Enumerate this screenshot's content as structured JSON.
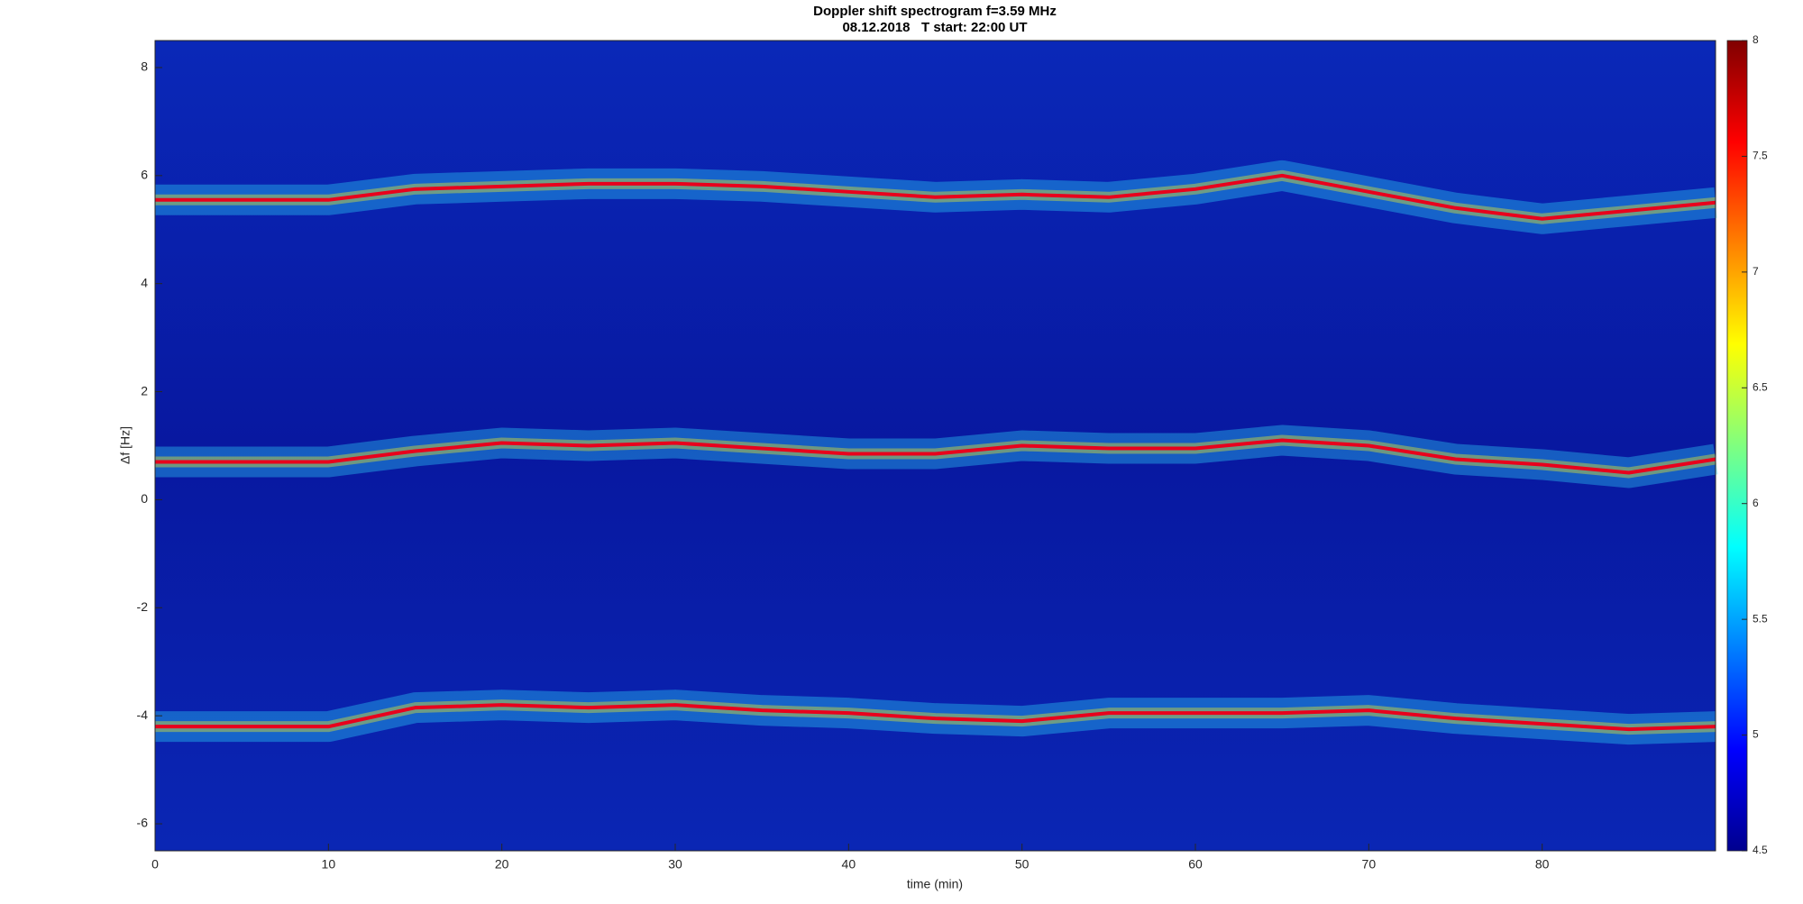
{
  "chart_data": {
    "type": "line",
    "title": "Doppler shift spectrogram f=3.59 MHz",
    "subtitle": "08.12.2018   T start: 22:00 UT",
    "x_label": "time (min)",
    "y_label": "Δf [Hz]",
    "x": [
      0,
      5,
      10,
      15,
      20,
      25,
      30,
      35,
      40,
      45,
      50,
      55,
      60,
      65,
      70,
      75,
      80,
      85,
      90
    ],
    "series": [
      {
        "color": "#e8001c",
        "values": [
          5.55,
          5.55,
          5.55,
          5.75,
          5.8,
          5.85,
          5.85,
          5.8,
          5.7,
          5.6,
          5.65,
          5.6,
          5.75,
          6.0,
          5.7,
          5.4,
          5.2,
          5.35,
          5.5
        ]
      },
      {
        "color": "#e8001c",
        "values": [
          0.7,
          0.7,
          0.7,
          0.9,
          1.05,
          1.0,
          1.05,
          0.95,
          0.85,
          0.85,
          1.0,
          0.95,
          0.95,
          1.1,
          1.0,
          0.75,
          0.65,
          0.5,
          0.75
        ]
      },
      {
        "color": "#e8001c",
        "values": [
          -4.2,
          -4.2,
          -4.2,
          -3.85,
          -3.8,
          -3.85,
          -3.8,
          -3.9,
          -3.95,
          -4.05,
          -4.1,
          -3.95,
          -3.95,
          -3.95,
          -3.9,
          -4.05,
          -4.15,
          -4.25,
          -4.2
        ]
      }
    ],
    "xlim": [
      0,
      90
    ],
    "xticks": [
      0,
      10,
      20,
      30,
      40,
      50,
      60,
      70,
      80
    ],
    "ylim": [
      -6.5,
      8.5
    ],
    "yticks": [
      -6,
      -4,
      -2,
      0,
      2,
      4,
      6,
      8
    ],
    "colorbar": {
      "lim": [
        4.5,
        8
      ],
      "ticks": [
        4.5,
        5,
        5.5,
        6,
        6.5,
        7,
        7.5,
        8
      ]
    }
  }
}
